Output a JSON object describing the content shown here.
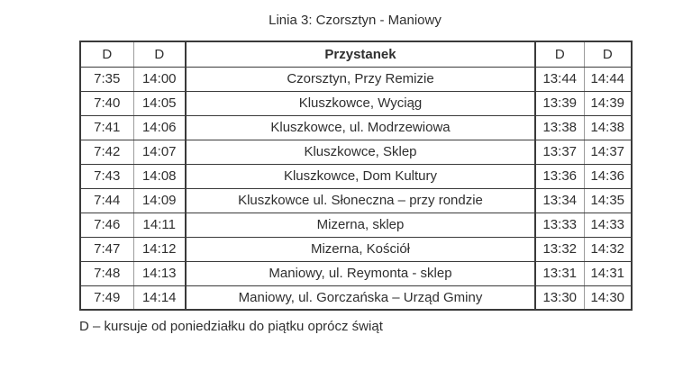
{
  "title": "Linia 3: Czorsztyn - Maniowy",
  "table": {
    "headers": [
      "D",
      "D",
      "Przystanek",
      "D",
      "D"
    ],
    "rows": [
      [
        "7:35",
        "14:00",
        "Czorsztyn, Przy Remizie",
        "13:44",
        "14:44"
      ],
      [
        "7:40",
        "14:05",
        "Kluszkowce, Wyciąg",
        "13:39",
        "14:39"
      ],
      [
        "7:41",
        "14:06",
        "Kluszkowce, ul. Modrzewiowa",
        "13:38",
        "14:38"
      ],
      [
        "7:42",
        "14:07",
        "Kluszkowce, Sklep",
        "13:37",
        "14:37"
      ],
      [
        "7:43",
        "14:08",
        "Kluszkowce, Dom Kultury",
        "13:36",
        "14:36"
      ],
      [
        "7:44",
        "14:09",
        "Kluszkowce ul. Słoneczna – przy rondzie",
        "13:34",
        "14:35"
      ],
      [
        "7:46",
        "14:11",
        "Mizerna, sklep",
        "13:33",
        "14:33"
      ],
      [
        "7:47",
        "14:12",
        "Mizerna, Kościół",
        "13:32",
        "14:32"
      ],
      [
        "7:48",
        "14:13",
        "Maniowy, ul. Reymonta - sklep",
        "13:31",
        "14:31"
      ],
      [
        "7:49",
        "14:14",
        "Maniowy, ul. Gorczańska – Urząd Gminy",
        "13:30",
        "14:30"
      ]
    ]
  },
  "footnote": "D – kursuje od poniedziałku do piątku oprócz świąt",
  "colors": {
    "text": "#2f2f2f",
    "border_dark": "#3a3a3a",
    "border_light": "#9c9c9c",
    "background": "#ffffff"
  }
}
